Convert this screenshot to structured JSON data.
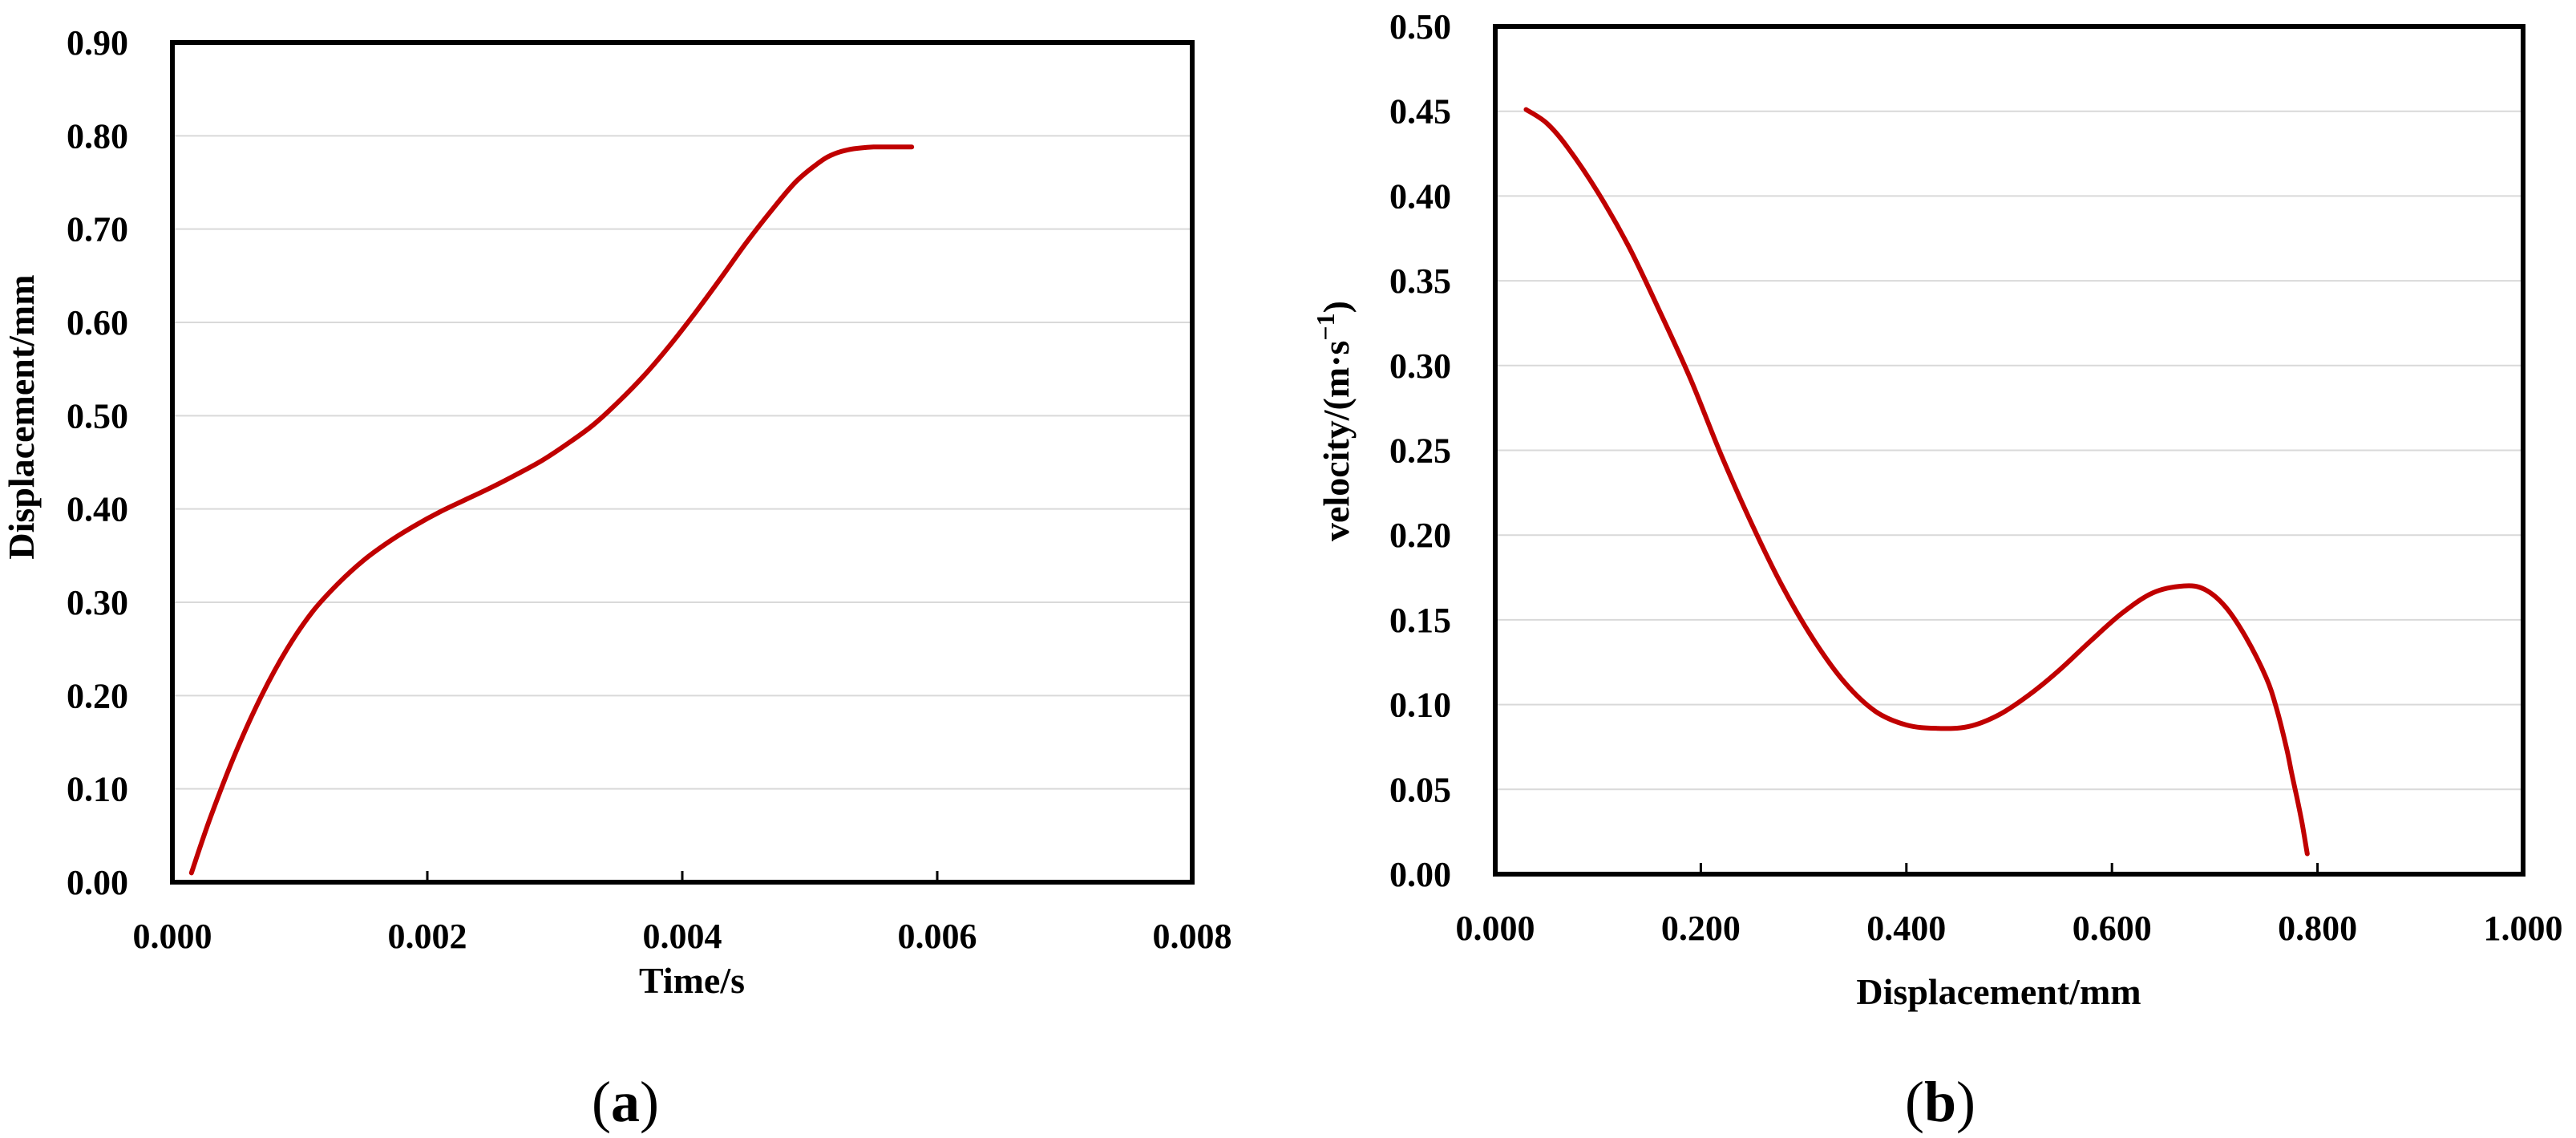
{
  "colors": {
    "series": "#c00000",
    "frame": "#000000",
    "grid": "#d9d9d9"
  },
  "chart_data": [
    {
      "type": "line",
      "panel_label": "a",
      "xlabel": "Time/s",
      "ylabel": "Displacement/mm",
      "xlim": [
        0,
        0.008
      ],
      "ylim": [
        0,
        0.9
      ],
      "xticks": [
        "0.000",
        "0.002",
        "0.004",
        "0.006",
        "0.008"
      ],
      "yticks": [
        "0.00",
        "0.10",
        "0.20",
        "0.30",
        "0.40",
        "0.50",
        "0.60",
        "0.70",
        "0.80",
        "0.90"
      ],
      "grid": "horizontal",
      "x": [
        0.00015,
        0.0003,
        0.0005,
        0.0007,
        0.0009,
        0.0011,
        0.0013,
        0.0015,
        0.0017,
        0.0019,
        0.0021,
        0.0023,
        0.0025,
        0.0027,
        0.0029,
        0.0031,
        0.0033,
        0.0035,
        0.0037,
        0.0039,
        0.0041,
        0.0043,
        0.0045,
        0.0047,
        0.0049,
        0.0051,
        0.0052,
        0.0053,
        0.0054,
        0.0055,
        0.0056,
        0.0057,
        0.0058
      ],
      "values": [
        0.01,
        0.07,
        0.14,
        0.2,
        0.25,
        0.29,
        0.32,
        0.345,
        0.365,
        0.382,
        0.397,
        0.41,
        0.423,
        0.437,
        0.452,
        0.47,
        0.49,
        0.515,
        0.543,
        0.575,
        0.61,
        0.647,
        0.685,
        0.72,
        0.752,
        0.774,
        0.781,
        0.785,
        0.787,
        0.788,
        0.788,
        0.788,
        0.788
      ]
    },
    {
      "type": "line",
      "panel_label": "b",
      "xlabel": "Displacement/mm",
      "ylabel_main": "velocity/(m·s",
      "ylabel_sup": "−1",
      "ylabel_end": ")",
      "xlim": [
        0,
        1.0
      ],
      "ylim": [
        0,
        0.5
      ],
      "xticks": [
        "0.000",
        "0.200",
        "0.400",
        "0.600",
        "0.800",
        "1.000"
      ],
      "yticks": [
        "0.00",
        "0.05",
        "0.10",
        "0.15",
        "0.20",
        "0.25",
        "0.30",
        "0.35",
        "0.40",
        "0.45",
        "0.50"
      ],
      "grid": "horizontal",
      "x": [
        0.03,
        0.05,
        0.07,
        0.1,
        0.13,
        0.16,
        0.19,
        0.22,
        0.25,
        0.28,
        0.31,
        0.34,
        0.37,
        0.4,
        0.43,
        0.46,
        0.49,
        0.52,
        0.55,
        0.58,
        0.61,
        0.64,
        0.67,
        0.69,
        0.71,
        0.73,
        0.75,
        0.76,
        0.77,
        0.775,
        0.78,
        0.785,
        0.79
      ],
      "values": [
        0.451,
        0.443,
        0.429,
        0.402,
        0.37,
        0.332,
        0.292,
        0.247,
        0.206,
        0.169,
        0.138,
        0.113,
        0.096,
        0.088,
        0.086,
        0.087,
        0.094,
        0.106,
        0.121,
        0.138,
        0.154,
        0.166,
        0.17,
        0.168,
        0.158,
        0.14,
        0.116,
        0.098,
        0.074,
        0.059,
        0.045,
        0.03,
        0.012
      ]
    }
  ]
}
